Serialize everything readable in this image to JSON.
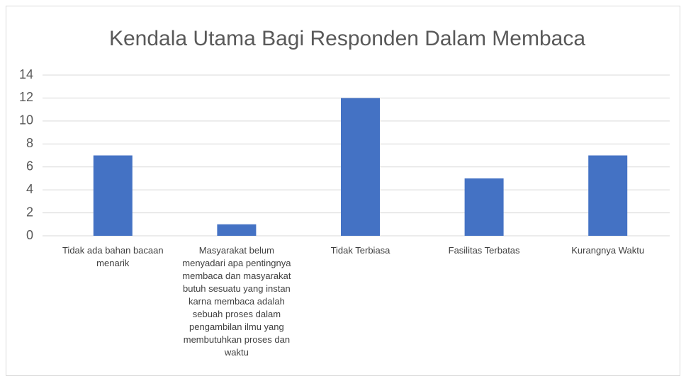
{
  "chart_data": {
    "type": "bar",
    "title": "Kendala Utama Bagi Responden Dalam Membaca",
    "categories": [
      "Tidak ada bahan bacaan menarik",
      "Masyarakat belum menyadari apa pentingnya membaca dan masyarakat butuh sesuatu yang instan karna membaca adalah sebuah proses dalam pengambilan ilmu yang membutuhkan proses dan waktu",
      "Tidak Terbiasa",
      "Fasilitas Terbatas",
      "Kurangnya Waktu"
    ],
    "values": [
      7,
      1,
      12,
      5,
      7
    ],
    "color": "#4472c4",
    "ylim": [
      0,
      14
    ],
    "yticks": [
      0,
      2,
      4,
      6,
      8,
      10,
      12,
      14
    ],
    "grid": true
  }
}
